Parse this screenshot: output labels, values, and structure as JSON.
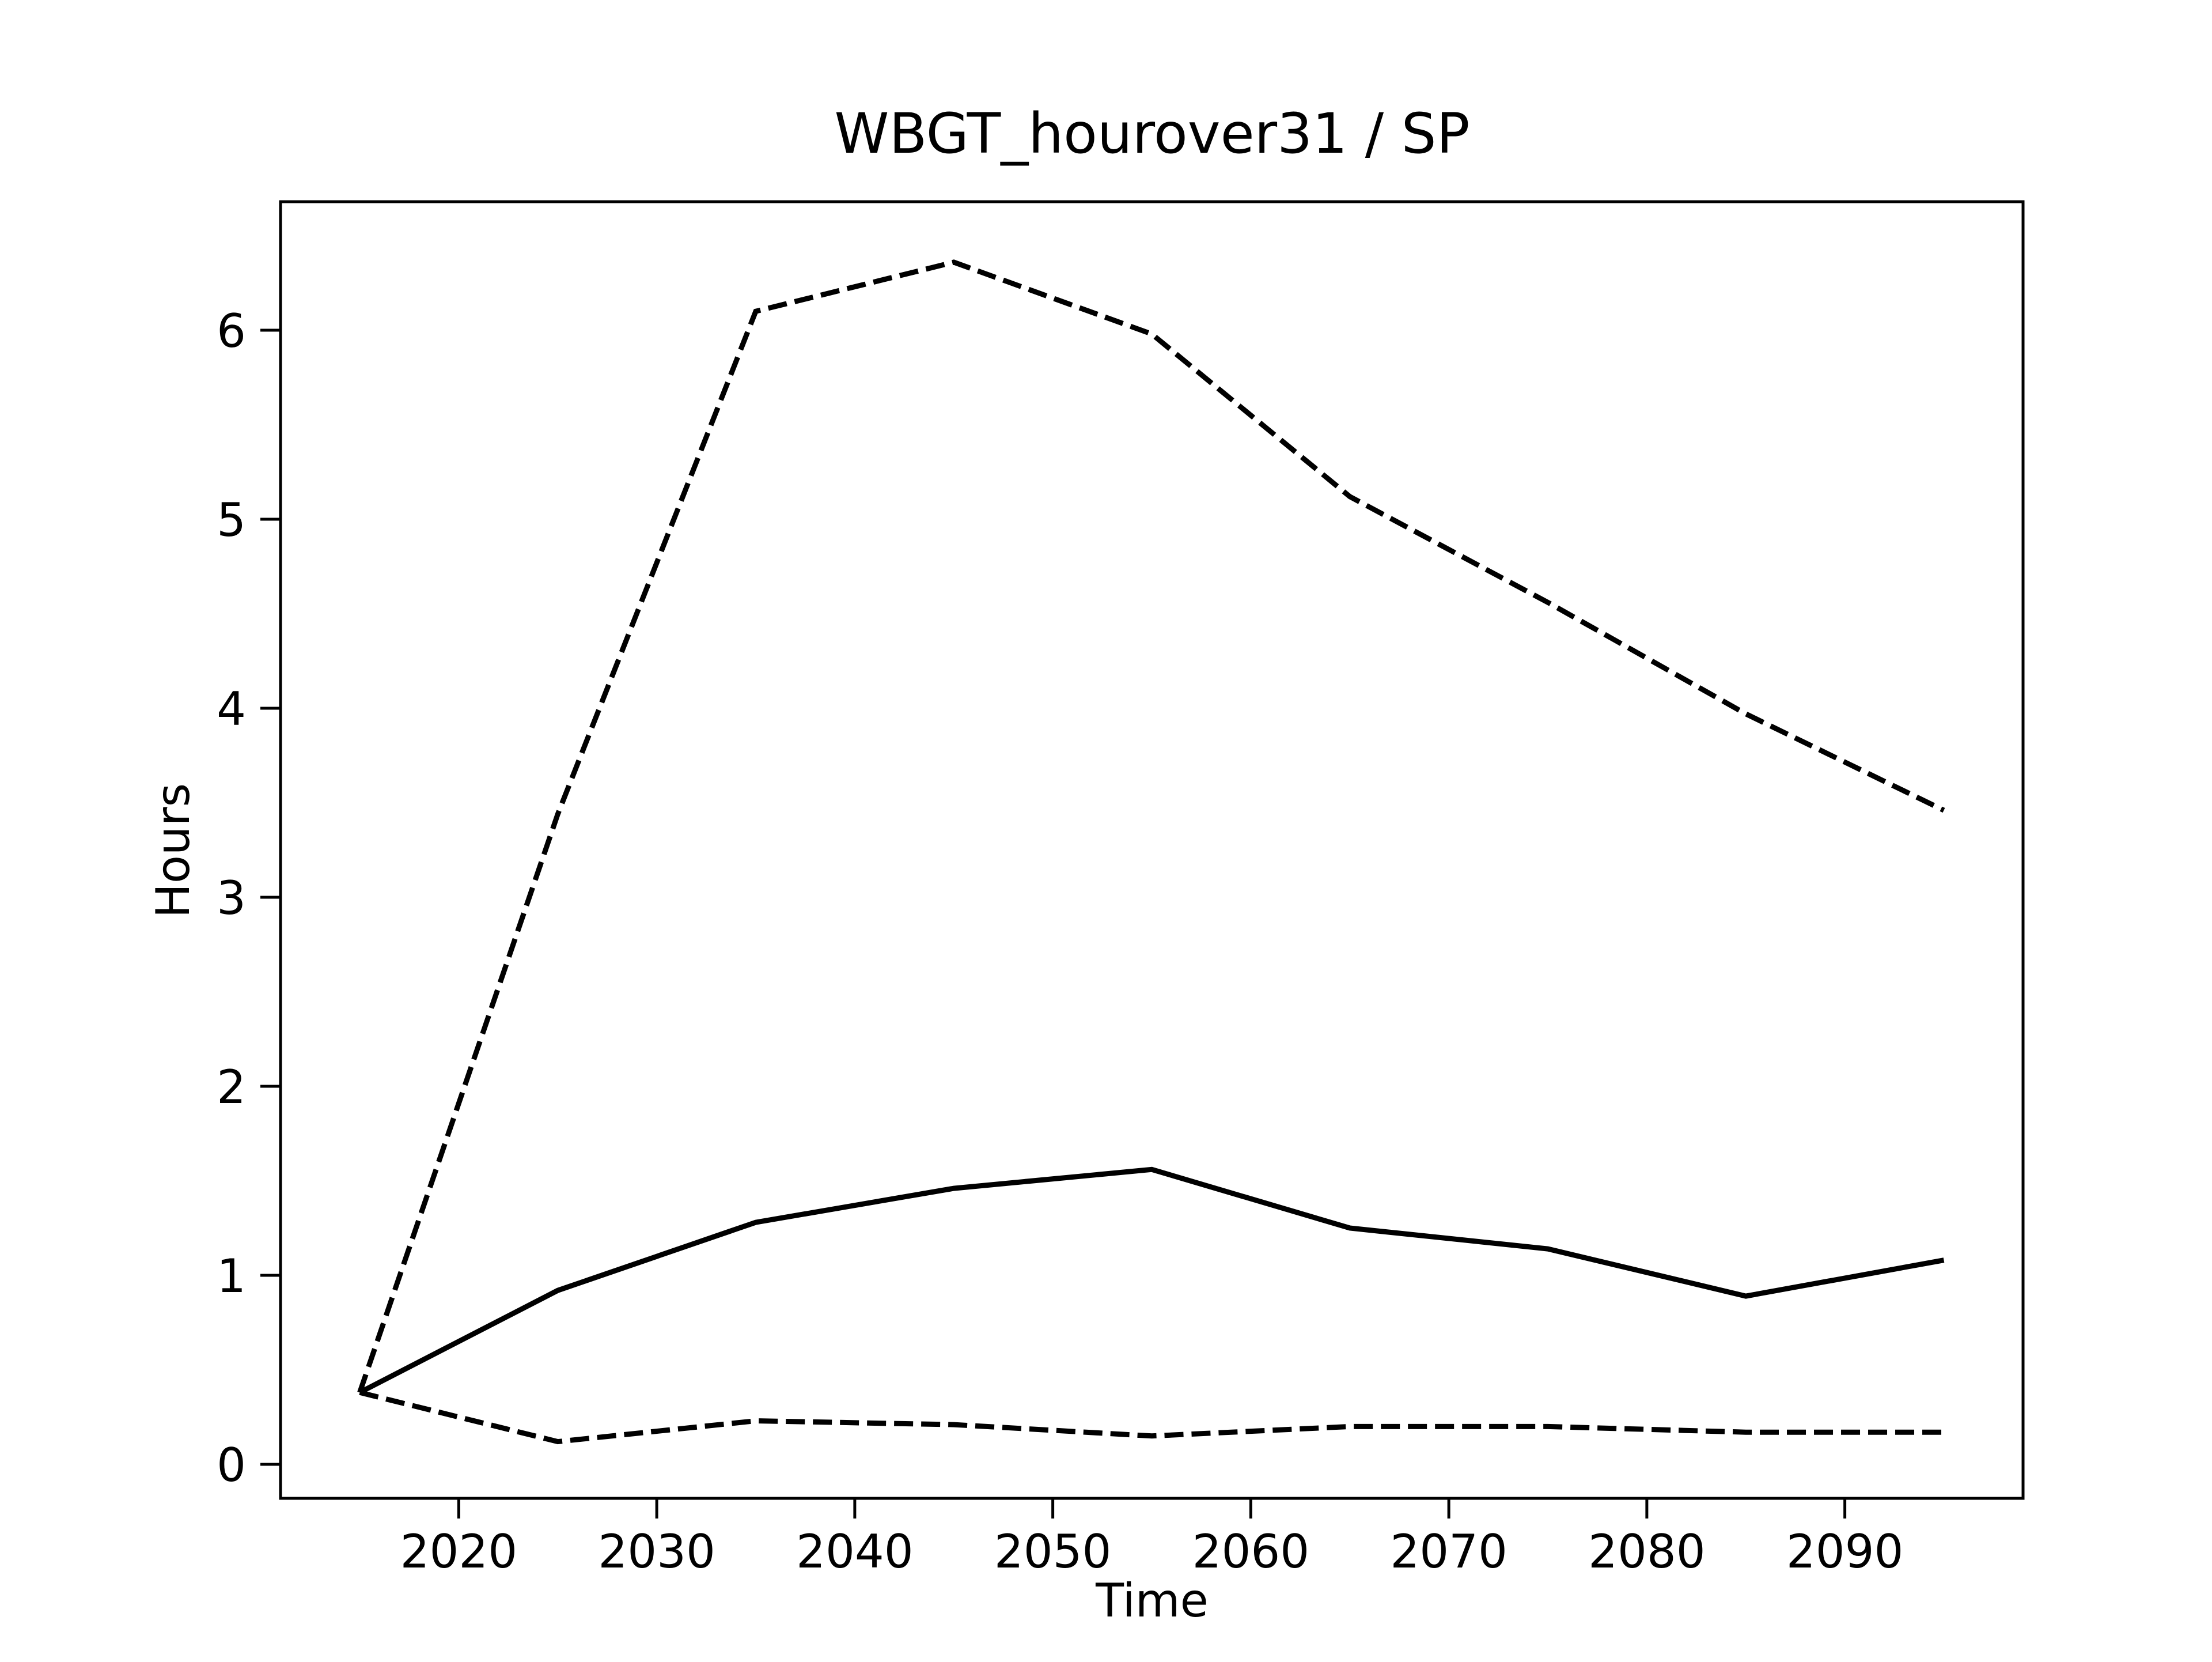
{
  "chart_data": {
    "type": "line",
    "title": "WBGT_hourover31 / SP",
    "xlabel": "Time",
    "ylabel": "Hours",
    "xlim": [
      2011,
      2099
    ],
    "ylim": [
      -0.18,
      6.68
    ],
    "xticks": [
      2020,
      2030,
      2040,
      2050,
      2060,
      2070,
      2080,
      2090
    ],
    "yticks": [
      0,
      1,
      2,
      3,
      4,
      5,
      6
    ],
    "grid": false,
    "legend": "none",
    "x": [
      2015,
      2025,
      2035,
      2045,
      2055,
      2065,
      2075,
      2085,
      2095
    ],
    "series": [
      {
        "style": "dashed",
        "color": "#000000",
        "values": [
          0.38,
          3.44,
          6.1,
          6.36,
          5.98,
          5.12,
          4.56,
          3.97,
          3.46
        ]
      },
      {
        "style": "solid",
        "color": "#000000",
        "values": [
          0.38,
          0.92,
          1.28,
          1.46,
          1.56,
          1.25,
          1.14,
          0.89,
          1.08
        ]
      },
      {
        "style": "dashed",
        "color": "#000000",
        "values": [
          0.38,
          0.12,
          0.23,
          0.21,
          0.15,
          0.2,
          0.2,
          0.17,
          0.17
        ]
      }
    ]
  }
}
